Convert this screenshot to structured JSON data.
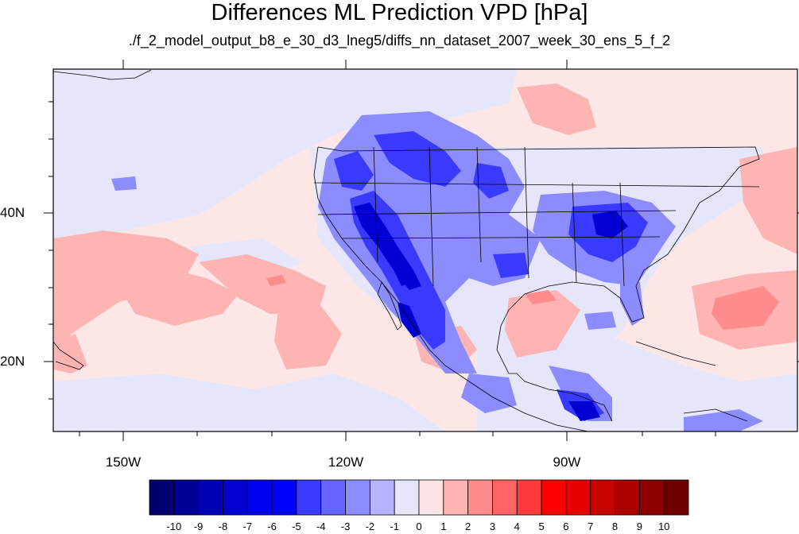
{
  "figure": {
    "title": "Differences ML Prediction VPD [hPa]",
    "subtitle": "./f_2_model_output_b8_e_30_d3_lneg5/diffs_nn_dataset_2007_week_30_ens_5_f_2"
  },
  "axes": {
    "lat_labels": [
      "40N",
      "20N"
    ],
    "lon_labels": [
      "150W",
      "120W",
      "90W"
    ]
  },
  "colorbar": {
    "labels": [
      "-10",
      "-9",
      "-8",
      "-7",
      "-6",
      "-5",
      "-4",
      "-3",
      "-2",
      "-1",
      "0",
      "1",
      "2",
      "3",
      "4",
      "5",
      "6",
      "7",
      "8",
      "9",
      "10"
    ],
    "colors": [
      "#00006e",
      "#000096",
      "#0000b4",
      "#0000d2",
      "#0000ee",
      "#0000ff",
      "#3a3aff",
      "#6464ff",
      "#8c8cff",
      "#b4b4ff",
      "#e6e6fa",
      "#fde5e5",
      "#ffb4b4",
      "#ff8c8c",
      "#ff6464",
      "#ff3a3a",
      "#ff0000",
      "#e60000",
      "#c80000",
      "#aa0000",
      "#8c0000",
      "#6e0000"
    ]
  },
  "colors": {
    "ocean_background": "#fde6e6",
    "coastline": "#000000",
    "frame": "#000000"
  }
}
